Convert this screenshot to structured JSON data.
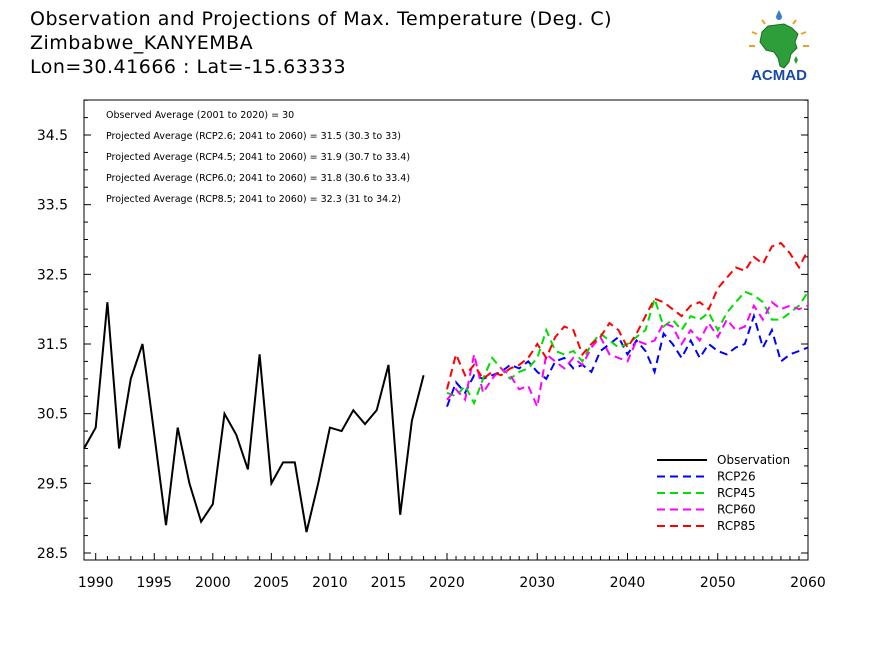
{
  "header": {
    "title": "Observation and Projections of Max. Temperature (Deg. C)",
    "location": "Zimbabwe_KANYEMBA",
    "coords": "Lon=30.41666 : Lat=-15.63333"
  },
  "logo": {
    "text": "ACMAD",
    "icon": "africa-continent-logo"
  },
  "colors": {
    "Observation": "#000000",
    "RCP26": "#0000ff",
    "RCP45": "#00dd00",
    "RCP60": "#ff00ff",
    "RCP85": "#ff0000"
  },
  "chart_data": {
    "type": "line",
    "title": "Observation and Projections of Max. Temperature (Deg. C)",
    "xlabel": "",
    "ylabel": "",
    "xlim": [
      1989,
      2060
    ],
    "ylim": [
      28.4,
      35.0
    ],
    "x_ticks_obs": [
      1990,
      1995,
      2000,
      2005,
      2010,
      2015,
      2020
    ],
    "x_ticks_proj": [
      2030,
      2040,
      2050,
      2060
    ],
    "y_ticks": [
      28.5,
      29.5,
      30.5,
      31.5,
      32.5,
      33.5,
      34.5
    ],
    "grid": false,
    "legend_position": "bottom-right",
    "annotations": [
      "Observed Average (2001 to 2020) = 30",
      "Projected Average (RCP2.6; 2041 to 2060) = 31.5 (30.3 to 33)",
      "Projected Average (RCP4.5; 2041 to 2060) = 31.9 (30.7 to 33.4)",
      "Projected Average (RCP6.0; 2041 to 2060) = 31.8 (30.6 to 33.4)",
      "Projected Average (RCP8.5; 2041 to 2060) = 32.3 (31 to 34.2)"
    ],
    "series": [
      {
        "name": "Observation",
        "style": "solid",
        "x": [
          1989,
          1990,
          1991,
          1992,
          1993,
          1994,
          1995,
          1996,
          1997,
          1998,
          1999,
          2000,
          2001,
          2002,
          2003,
          2004,
          2005,
          2006,
          2007,
          2008,
          2009,
          2010,
          2011,
          2012,
          2013,
          2014,
          2015,
          2016,
          2017,
          2018,
          2019
        ],
        "values": [
          30.0,
          30.3,
          32.1,
          30.0,
          31.0,
          31.5,
          30.2,
          28.9,
          30.3,
          29.5,
          28.95,
          29.2,
          30.5,
          30.2,
          29.7,
          31.35,
          29.5,
          29.8,
          29.8,
          28.8,
          29.5,
          30.3,
          30.25,
          30.55,
          30.35,
          30.55,
          31.2,
          29.05,
          30.4,
          31.05,
          null
        ]
      },
      {
        "name": "RCP26",
        "style": "dashed",
        "x": [
          2020,
          2021,
          2022,
          2023,
          2024,
          2025,
          2026,
          2027,
          2028,
          2029,
          2030,
          2031,
          2032,
          2033,
          2034,
          2035,
          2036,
          2037,
          2038,
          2039,
          2040,
          2041,
          2042,
          2043,
          2044,
          2045,
          2046,
          2047,
          2048,
          2049,
          2050,
          2051,
          2052,
          2053,
          2054,
          2055,
          2056,
          2057,
          2058,
          2059,
          2060
        ],
        "values": [
          30.6,
          30.95,
          30.8,
          31.05,
          31.0,
          31.05,
          31.1,
          31.2,
          31.15,
          31.25,
          31.1,
          31.0,
          31.25,
          31.3,
          31.15,
          31.2,
          31.1,
          31.4,
          31.5,
          31.6,
          31.35,
          31.55,
          31.4,
          31.1,
          31.65,
          31.5,
          31.3,
          31.55,
          31.3,
          31.5,
          31.4,
          31.35,
          31.45,
          31.5,
          31.9,
          31.45,
          31.7,
          31.25,
          31.35,
          31.4,
          31.45
        ]
      },
      {
        "name": "RCP45",
        "style": "dashed",
        "x": [
          2020,
          2021,
          2022,
          2023,
          2024,
          2025,
          2026,
          2027,
          2028,
          2029,
          2030,
          2031,
          2032,
          2033,
          2034,
          2035,
          2036,
          2037,
          2038,
          2039,
          2040,
          2041,
          2042,
          2043,
          2044,
          2045,
          2046,
          2047,
          2048,
          2049,
          2050,
          2051,
          2052,
          2053,
          2054,
          2055,
          2056,
          2057,
          2058,
          2059,
          2060
        ],
        "values": [
          30.8,
          30.75,
          30.9,
          30.65,
          31.0,
          31.3,
          31.15,
          31.0,
          31.1,
          31.15,
          31.3,
          31.7,
          31.4,
          31.35,
          31.4,
          31.25,
          31.5,
          31.65,
          31.55,
          31.45,
          31.5,
          31.6,
          31.7,
          32.15,
          31.75,
          31.85,
          31.7,
          31.9,
          31.85,
          31.95,
          31.7,
          31.95,
          32.1,
          32.25,
          32.2,
          32.1,
          31.85,
          31.85,
          31.95,
          32.05,
          32.25
        ]
      },
      {
        "name": "RCP60",
        "style": "dashed",
        "x": [
          2020,
          2021,
          2022,
          2023,
          2024,
          2025,
          2026,
          2027,
          2028,
          2029,
          2030,
          2031,
          2032,
          2033,
          2034,
          2035,
          2036,
          2037,
          2038,
          2039,
          2040,
          2041,
          2042,
          2043,
          2044,
          2045,
          2046,
          2047,
          2048,
          2049,
          2050,
          2051,
          2052,
          2053,
          2054,
          2055,
          2056,
          2057,
          2058,
          2059,
          2060
        ],
        "values": [
          30.7,
          30.85,
          30.7,
          31.35,
          30.8,
          31.0,
          31.15,
          31.05,
          30.85,
          30.9,
          30.6,
          31.35,
          31.25,
          31.15,
          31.3,
          31.2,
          31.45,
          31.6,
          31.35,
          31.3,
          31.25,
          31.55,
          31.5,
          31.55,
          31.8,
          31.75,
          31.5,
          31.7,
          31.55,
          31.8,
          31.6,
          31.85,
          31.7,
          31.75,
          32.05,
          31.85,
          32.1,
          32.0,
          32.05,
          32.0,
          32.05
        ]
      },
      {
        "name": "RCP85",
        "style": "dashed",
        "x": [
          2020,
          2021,
          2022,
          2023,
          2024,
          2025,
          2026,
          2027,
          2028,
          2029,
          2030,
          2031,
          2032,
          2033,
          2034,
          2035,
          2036,
          2037,
          2038,
          2039,
          2040,
          2041,
          2042,
          2043,
          2044,
          2045,
          2046,
          2047,
          2048,
          2049,
          2050,
          2051,
          2052,
          2053,
          2054,
          2055,
          2056,
          2057,
          2058,
          2059,
          2060
        ],
        "values": [
          30.85,
          31.35,
          31.05,
          31.2,
          31.0,
          31.1,
          31.05,
          31.15,
          31.2,
          31.3,
          31.5,
          31.3,
          31.6,
          31.75,
          31.7,
          31.35,
          31.5,
          31.6,
          31.8,
          31.7,
          31.45,
          31.65,
          31.9,
          32.15,
          32.1,
          32.0,
          31.9,
          32.05,
          32.1,
          32.0,
          32.3,
          32.45,
          32.6,
          32.55,
          32.75,
          32.65,
          32.9,
          32.95,
          32.8,
          32.6,
          32.85
        ]
      }
    ]
  }
}
